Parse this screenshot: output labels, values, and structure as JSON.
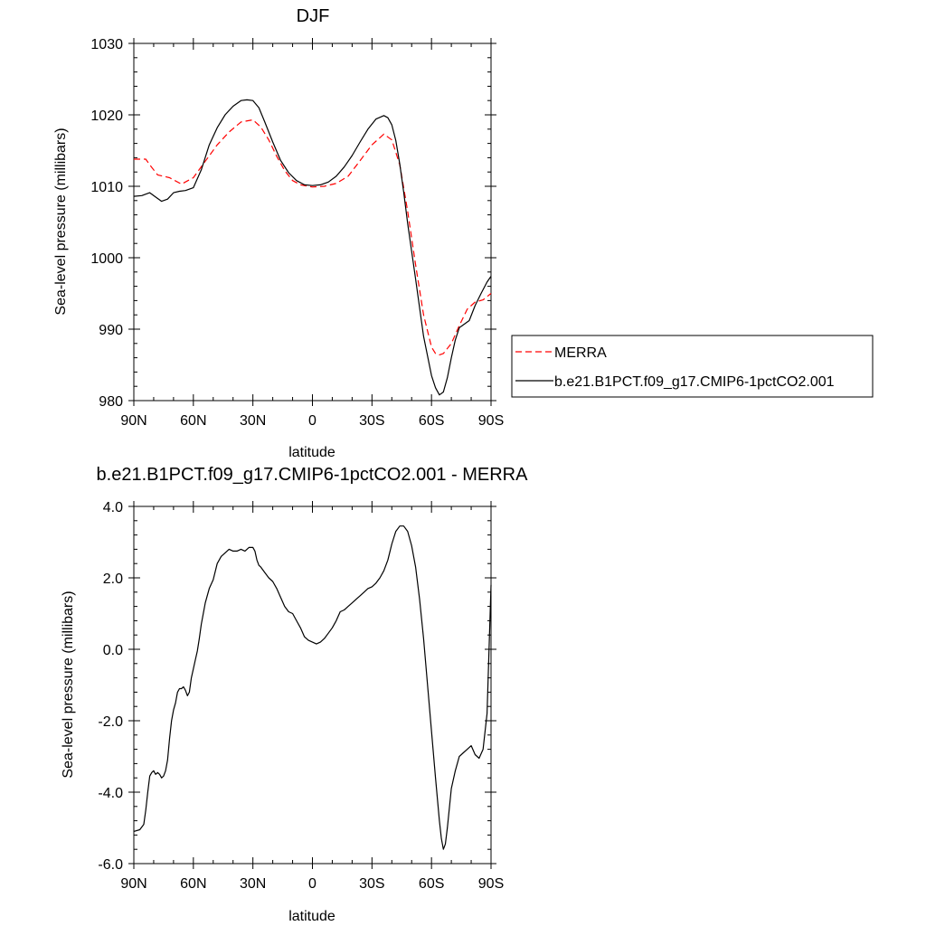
{
  "chart_data": [
    {
      "type": "line",
      "title": "DJF",
      "xlabel": "latitude",
      "ylabel": "Sea-level pressure (millibars)",
      "xticks": [
        "90N",
        "60N",
        "30N",
        "0",
        "30S",
        "60S",
        "90S"
      ],
      "xlim": [
        90,
        -90
      ],
      "ylim": [
        980,
        1030
      ],
      "yticks": [
        "980",
        "990",
        "1000",
        "1010",
        "1020",
        "1030"
      ],
      "series": [
        {
          "name": "MERRA",
          "color": "#ff0000",
          "dash": "dashed",
          "x": [
            90,
            84,
            82,
            78,
            72,
            66,
            60,
            54,
            48,
            42,
            36,
            30,
            26,
            22,
            18,
            14,
            10,
            6,
            2,
            0,
            -6,
            -12,
            -18,
            -24,
            -30,
            -36,
            -40,
            -44,
            -48,
            -52,
            -56,
            -60,
            -62,
            -64,
            -66,
            -70,
            -74,
            -78,
            -82,
            -86,
            -90
          ],
          "y": [
            1013.8,
            1013.8,
            1013.0,
            1011.6,
            1011.2,
            1010.3,
            1011.2,
            1013.5,
            1015.8,
            1017.6,
            1019.0,
            1019.3,
            1018.3,
            1016.5,
            1014.2,
            1012.2,
            1010.8,
            1010.2,
            1010.0,
            1009.9,
            1010.0,
            1010.4,
            1011.4,
            1013.6,
            1015.8,
            1017.3,
            1016.5,
            1013.0,
            1006.5,
            999.0,
            992.0,
            987.5,
            986.6,
            986.4,
            986.6,
            988.0,
            990.5,
            992.8,
            993.8,
            994.1,
            995.0
          ]
        },
        {
          "name": "b.e21.B1PCT.f09_g17.CMIP6-1pctCO2.001",
          "color": "#000000",
          "dash": "solid",
          "x": [
            90,
            86,
            82,
            79,
            76,
            73,
            70,
            67,
            64,
            60,
            56,
            52,
            48,
            44,
            40,
            36,
            33,
            30,
            27,
            24,
            20,
            16,
            12,
            8,
            4,
            0,
            -4,
            -8,
            -12,
            -16,
            -20,
            -24,
            -28,
            -32,
            -36,
            -38,
            -40,
            -42,
            -44,
            -46,
            -48,
            -52,
            -56,
            -60,
            -62,
            -64,
            -66,
            -68,
            -70,
            -72,
            -74,
            -76,
            -79,
            -82,
            -85,
            -88,
            -90
          ],
          "y": [
            1008.6,
            1008.7,
            1009.1,
            1008.5,
            1007.9,
            1008.2,
            1009.1,
            1009.3,
            1009.4,
            1009.8,
            1012.3,
            1015.8,
            1018.2,
            1020.0,
            1021.2,
            1022.0,
            1022.1,
            1022.0,
            1021.0,
            1019.0,
            1016.2,
            1013.6,
            1011.9,
            1010.8,
            1010.2,
            1010.1,
            1010.2,
            1010.6,
            1011.4,
            1012.7,
            1014.3,
            1016.2,
            1018.0,
            1019.4,
            1019.9,
            1019.6,
            1018.6,
            1016.4,
            1013.1,
            1009.2,
            1004.8,
            997.0,
            989.0,
            983.5,
            981.8,
            980.8,
            981.2,
            983.2,
            986.0,
            988.5,
            990.2,
            990.6,
            991.2,
            993.3,
            995.0,
            996.6,
            997.4
          ]
        }
      ],
      "legend": "right"
    },
    {
      "type": "line",
      "title": "b.e21.B1PCT.f09_g17.CMIP6-1pctCO2.001 - MERRA",
      "xlabel": "latitude",
      "ylabel": "Sea-level pressure (millibars)",
      "xticks": [
        "90N",
        "60N",
        "30N",
        "0",
        "30S",
        "60S",
        "90S"
      ],
      "xlim": [
        90,
        -90
      ],
      "ylim": [
        -6.0,
        4.0
      ],
      "yticks": [
        "-6.0",
        "-4.0",
        "-2.0",
        "0.0",
        "2.0",
        "4.0"
      ],
      "series": [
        {
          "color": "#000000",
          "dash": "solid",
          "x": [
            90,
            87,
            85,
            84,
            83,
            82,
            81,
            80,
            79,
            78,
            77,
            76,
            75,
            74,
            73,
            72,
            71,
            70,
            69,
            68,
            67,
            66,
            65,
            64,
            63,
            62,
            61,
            60,
            59,
            58,
            57,
            56,
            55,
            54,
            52,
            50,
            48,
            46,
            44,
            42,
            40,
            38,
            36,
            34,
            32,
            30,
            29,
            28,
            27,
            26,
            24,
            22,
            20,
            18,
            16,
            14,
            12,
            10,
            8,
            6,
            4,
            2,
            0,
            -2,
            -4,
            -6,
            -8,
            -10,
            -12,
            -14,
            -16,
            -18,
            -20,
            -22,
            -24,
            -26,
            -28,
            -30,
            -32,
            -34,
            -36,
            -38,
            -40,
            -42,
            -44,
            -46,
            -48,
            -50,
            -52,
            -54,
            -56,
            -58,
            -60,
            -62,
            -64,
            -65,
            -66,
            -67,
            -68,
            -70,
            -72,
            -74,
            -76,
            -78,
            -80,
            -82,
            -84,
            -86,
            -88,
            -90
          ],
          "y": [
            -5.1,
            -5.05,
            -4.9,
            -4.5,
            -4.0,
            -3.55,
            -3.45,
            -3.4,
            -3.5,
            -3.45,
            -3.5,
            -3.6,
            -3.55,
            -3.4,
            -3.1,
            -2.5,
            -2.0,
            -1.7,
            -1.5,
            -1.2,
            -1.1,
            -1.1,
            -1.05,
            -1.15,
            -1.3,
            -1.2,
            -0.8,
            -0.55,
            -0.3,
            -0.05,
            0.3,
            0.7,
            1.0,
            1.3,
            1.7,
            1.95,
            2.4,
            2.6,
            2.7,
            2.8,
            2.75,
            2.75,
            2.8,
            2.75,
            2.85,
            2.85,
            2.75,
            2.5,
            2.35,
            2.3,
            2.15,
            2.0,
            1.9,
            1.7,
            1.45,
            1.2,
            1.05,
            1.0,
            0.8,
            0.6,
            0.35,
            0.25,
            0.2,
            0.15,
            0.2,
            0.3,
            0.45,
            0.6,
            0.8,
            1.05,
            1.1,
            1.2,
            1.3,
            1.4,
            1.5,
            1.6,
            1.7,
            1.75,
            1.85,
            2.0,
            2.2,
            2.5,
            2.95,
            3.3,
            3.45,
            3.45,
            3.3,
            2.9,
            2.3,
            1.4,
            0.3,
            -1.0,
            -2.3,
            -3.6,
            -4.8,
            -5.3,
            -5.6,
            -5.45,
            -5.0,
            -3.9,
            -3.4,
            -3.0,
            -2.9,
            -2.8,
            -2.7,
            -2.95,
            -3.05,
            -2.8,
            -1.8,
            1.8
          ]
        }
      ]
    }
  ]
}
